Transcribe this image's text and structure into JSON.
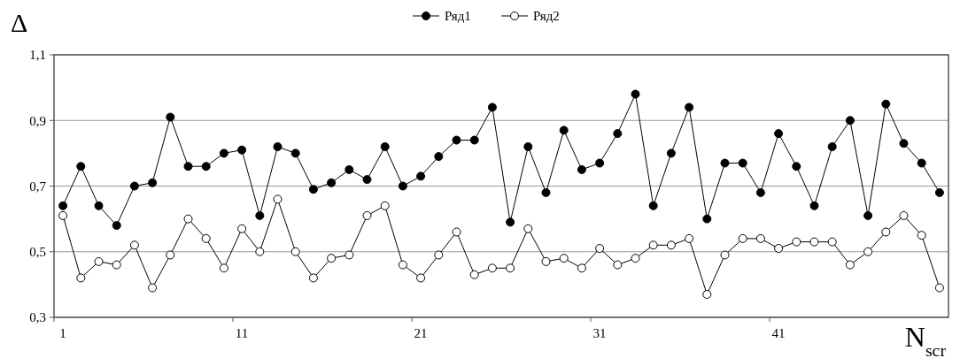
{
  "chart_data": {
    "type": "line",
    "xlabel": "N$_{scr}$",
    "ylabel": "Δ",
    "categories": [
      "1",
      null,
      null,
      null,
      null,
      null,
      null,
      null,
      null,
      null,
      "11",
      null,
      null,
      null,
      null,
      null,
      null,
      null,
      null,
      null,
      "21",
      null,
      null,
      null,
      null,
      null,
      null,
      null,
      null,
      null,
      "31",
      null,
      null,
      null,
      null,
      null,
      null,
      null,
      null,
      null,
      "41",
      null,
      null,
      null,
      null,
      null,
      null,
      null,
      null,
      null
    ],
    "series": [
      {
        "name": "Ряд1",
        "color": "#000000",
        "values": [
          0.64,
          0.76,
          0.64,
          0.58,
          0.7,
          0.71,
          0.91,
          0.76,
          0.76,
          0.8,
          0.81,
          0.61,
          0.82,
          0.8,
          0.69,
          0.71,
          0.75,
          0.72,
          0.82,
          0.7,
          0.73,
          0.79,
          0.84,
          0.84,
          0.94,
          0.59,
          0.82,
          0.68,
          0.87,
          0.75,
          0.77,
          0.86,
          0.98,
          0.64,
          0.8,
          0.94,
          0.6,
          0.77,
          0.77,
          0.68,
          0.86,
          0.76,
          0.64,
          0.82,
          0.9,
          0.61,
          0.95,
          0.83,
          0.77,
          0.68
        ]
      },
      {
        "name": "Ряд2",
        "color": "#000000",
        "values": [
          0.61,
          0.42,
          0.47,
          0.46,
          0.52,
          0.39,
          0.49,
          0.6,
          0.54,
          0.45,
          0.57,
          0.5,
          0.66,
          0.5,
          0.42,
          0.48,
          0.49,
          0.61,
          0.64,
          0.46,
          0.42,
          0.49,
          0.56,
          0.43,
          0.45,
          0.45,
          0.57,
          0.47,
          0.48,
          0.45,
          0.51,
          0.46,
          0.48,
          0.52,
          0.52,
          0.54,
          0.37,
          0.49,
          0.54,
          0.54,
          0.51,
          0.53,
          0.53,
          0.53,
          0.46,
          0.5,
          0.56,
          0.61,
          0.55,
          0.39
        ]
      }
    ],
    "ylim": [
      0.3,
      1.1
    ],
    "yticks": [
      {
        "value": 0.3,
        "label": "0,3"
      },
      {
        "value": 0.5,
        "label": "0,5"
      },
      {
        "value": 0.7,
        "label": "0,7"
      },
      {
        "value": 0.9,
        "label": "0,9"
      },
      {
        "value": 1.1,
        "label": "1,1"
      }
    ],
    "grid": "y",
    "legend": "top",
    "marker": "circle",
    "line_style": "solid"
  }
}
